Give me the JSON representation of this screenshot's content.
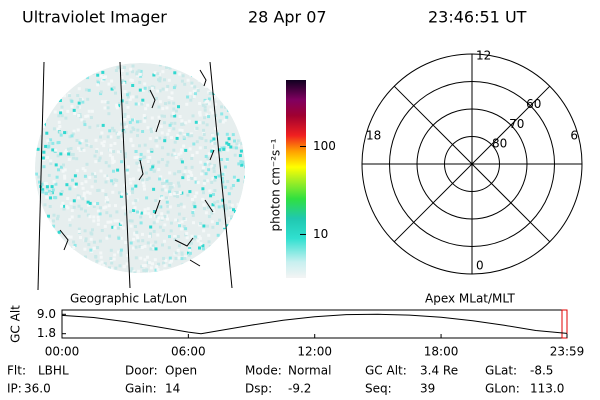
{
  "header": {
    "instrument": "Ultraviolet Imager",
    "date": "28 Apr 07",
    "time": "23:46:51 UT"
  },
  "panels": {
    "left_label": "Geographic Lat/Lon",
    "right_label": "Apex MLat/MLT"
  },
  "colorbar": {
    "label": "photon cm⁻²s⁻¹",
    "log": true,
    "clim": [
      3.2,
      570
    ],
    "ticks": [
      10,
      100
    ]
  },
  "polar": {
    "lat_lim": [
      90,
      50
    ],
    "lat_ticks": [
      80,
      70,
      60
    ],
    "mlt_ticks": [
      12,
      18,
      6,
      0
    ]
  },
  "chart_data": {
    "type": "line",
    "y_label": "GC Alt",
    "x": [
      0,
      1.5,
      3,
      4.5,
      6,
      6.6,
      7.5,
      9,
      10.5,
      12,
      13.5,
      15,
      16.5,
      18,
      19.5,
      21,
      22.5,
      23.98
    ],
    "values": [
      8.6,
      7.8,
      6.3,
      4.4,
      2.4,
      1.8,
      3.0,
      5.0,
      6.8,
      8.1,
      8.9,
      9.0,
      8.7,
      7.9,
      6.6,
      4.9,
      3.0,
      1.9
    ],
    "color": "#000000",
    "xlim": [
      0,
      23.98
    ],
    "xticks": [
      {
        "value": 0,
        "label": "00:00"
      },
      {
        "value": 6,
        "label": "06:00"
      },
      {
        "value": 12,
        "label": "12:00"
      },
      {
        "value": 18,
        "label": "18:00"
      },
      {
        "value": 23.98,
        "label": "23:59"
      }
    ],
    "ylim": [
      0.2,
      10.6
    ],
    "yticks": [
      {
        "value": 9,
        "label": "9.0"
      },
      {
        "value": 1.8,
        "label": "1.8"
      }
    ]
  },
  "footer": [
    [
      [
        "Flt:",
        "LBHL"
      ],
      [
        "Door:",
        "Open"
      ],
      [
        "Mode:",
        "Normal"
      ],
      [
        "GC Alt:",
        "3.4 Re"
      ],
      [
        "GLat:",
        "-8.5"
      ]
    ],
    [
      [
        "IP:",
        "36.0"
      ],
      [
        "Gain:",
        "14"
      ],
      [
        "Dsp:",
        "-9.2"
      ],
      [
        "Seq:",
        "39"
      ],
      [
        "GLon:",
        "113.0"
      ]
    ]
  ]
}
